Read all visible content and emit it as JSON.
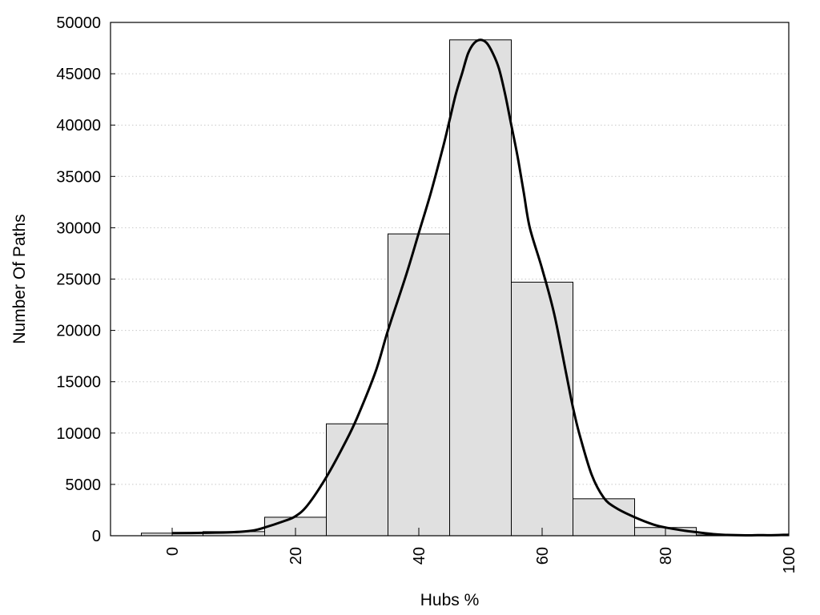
{
  "chart_data": {
    "type": "bar",
    "xlabel": "Hubs %",
    "ylabel": "Number Of Paths",
    "xlim": [
      -10,
      100
    ],
    "ylim": [
      0,
      50000
    ],
    "grid": true,
    "x_ticks": [
      "0",
      "20",
      "40",
      "60",
      "80",
      "100"
    ],
    "y_ticks": [
      "0",
      "5000",
      "10000",
      "15000",
      "20000",
      "25000",
      "30000",
      "35000",
      "40000",
      "45000",
      "50000"
    ],
    "bins": [
      {
        "from": -5,
        "to": 5,
        "value": 250
      },
      {
        "from": 5,
        "to": 15,
        "value": 400
      },
      {
        "from": 15,
        "to": 25,
        "value": 1800
      },
      {
        "from": 25,
        "to": 35,
        "value": 10900
      },
      {
        "from": 35,
        "to": 45,
        "value": 29400
      },
      {
        "from": 45,
        "to": 55,
        "value": 48300
      },
      {
        "from": 55,
        "to": 65,
        "value": 24700
      },
      {
        "from": 65,
        "to": 75,
        "value": 3600
      },
      {
        "from": 75,
        "to": 85,
        "value": 800
      },
      {
        "from": 85,
        "to": 95,
        "value": 80
      },
      {
        "from": 95,
        "to": 100,
        "value": 40
      }
    ],
    "curve": {
      "x": [
        0,
        5,
        10,
        13,
        15,
        18,
        20,
        22,
        25,
        28,
        30,
        33,
        35,
        38,
        40,
        42,
        44,
        45,
        46,
        47,
        48,
        49,
        50,
        51,
        52,
        53,
        54,
        55,
        56,
        57,
        58,
        60,
        62,
        64,
        65,
        66,
        68,
        70,
        72,
        75,
        78,
        80,
        83,
        85,
        88,
        90,
        93,
        95,
        97,
        100
      ],
      "y": [
        250,
        280,
        350,
        500,
        800,
        1400,
        1900,
        3000,
        5700,
        9000,
        11500,
        16000,
        20000,
        25500,
        29500,
        33500,
        38000,
        40500,
        43000,
        45000,
        47000,
        48000,
        48300,
        48000,
        47000,
        45500,
        43000,
        40000,
        37000,
        33500,
        30000,
        26000,
        21500,
        15500,
        12500,
        10000,
        6000,
        3700,
        2700,
        1800,
        1100,
        800,
        500,
        350,
        150,
        80,
        40,
        60,
        50,
        100
      ]
    },
    "bar_fill": "#e0e0e0",
    "bar_stroke": "#000000",
    "grid_color": "#c8c8c8",
    "curve_color": "#000000"
  }
}
